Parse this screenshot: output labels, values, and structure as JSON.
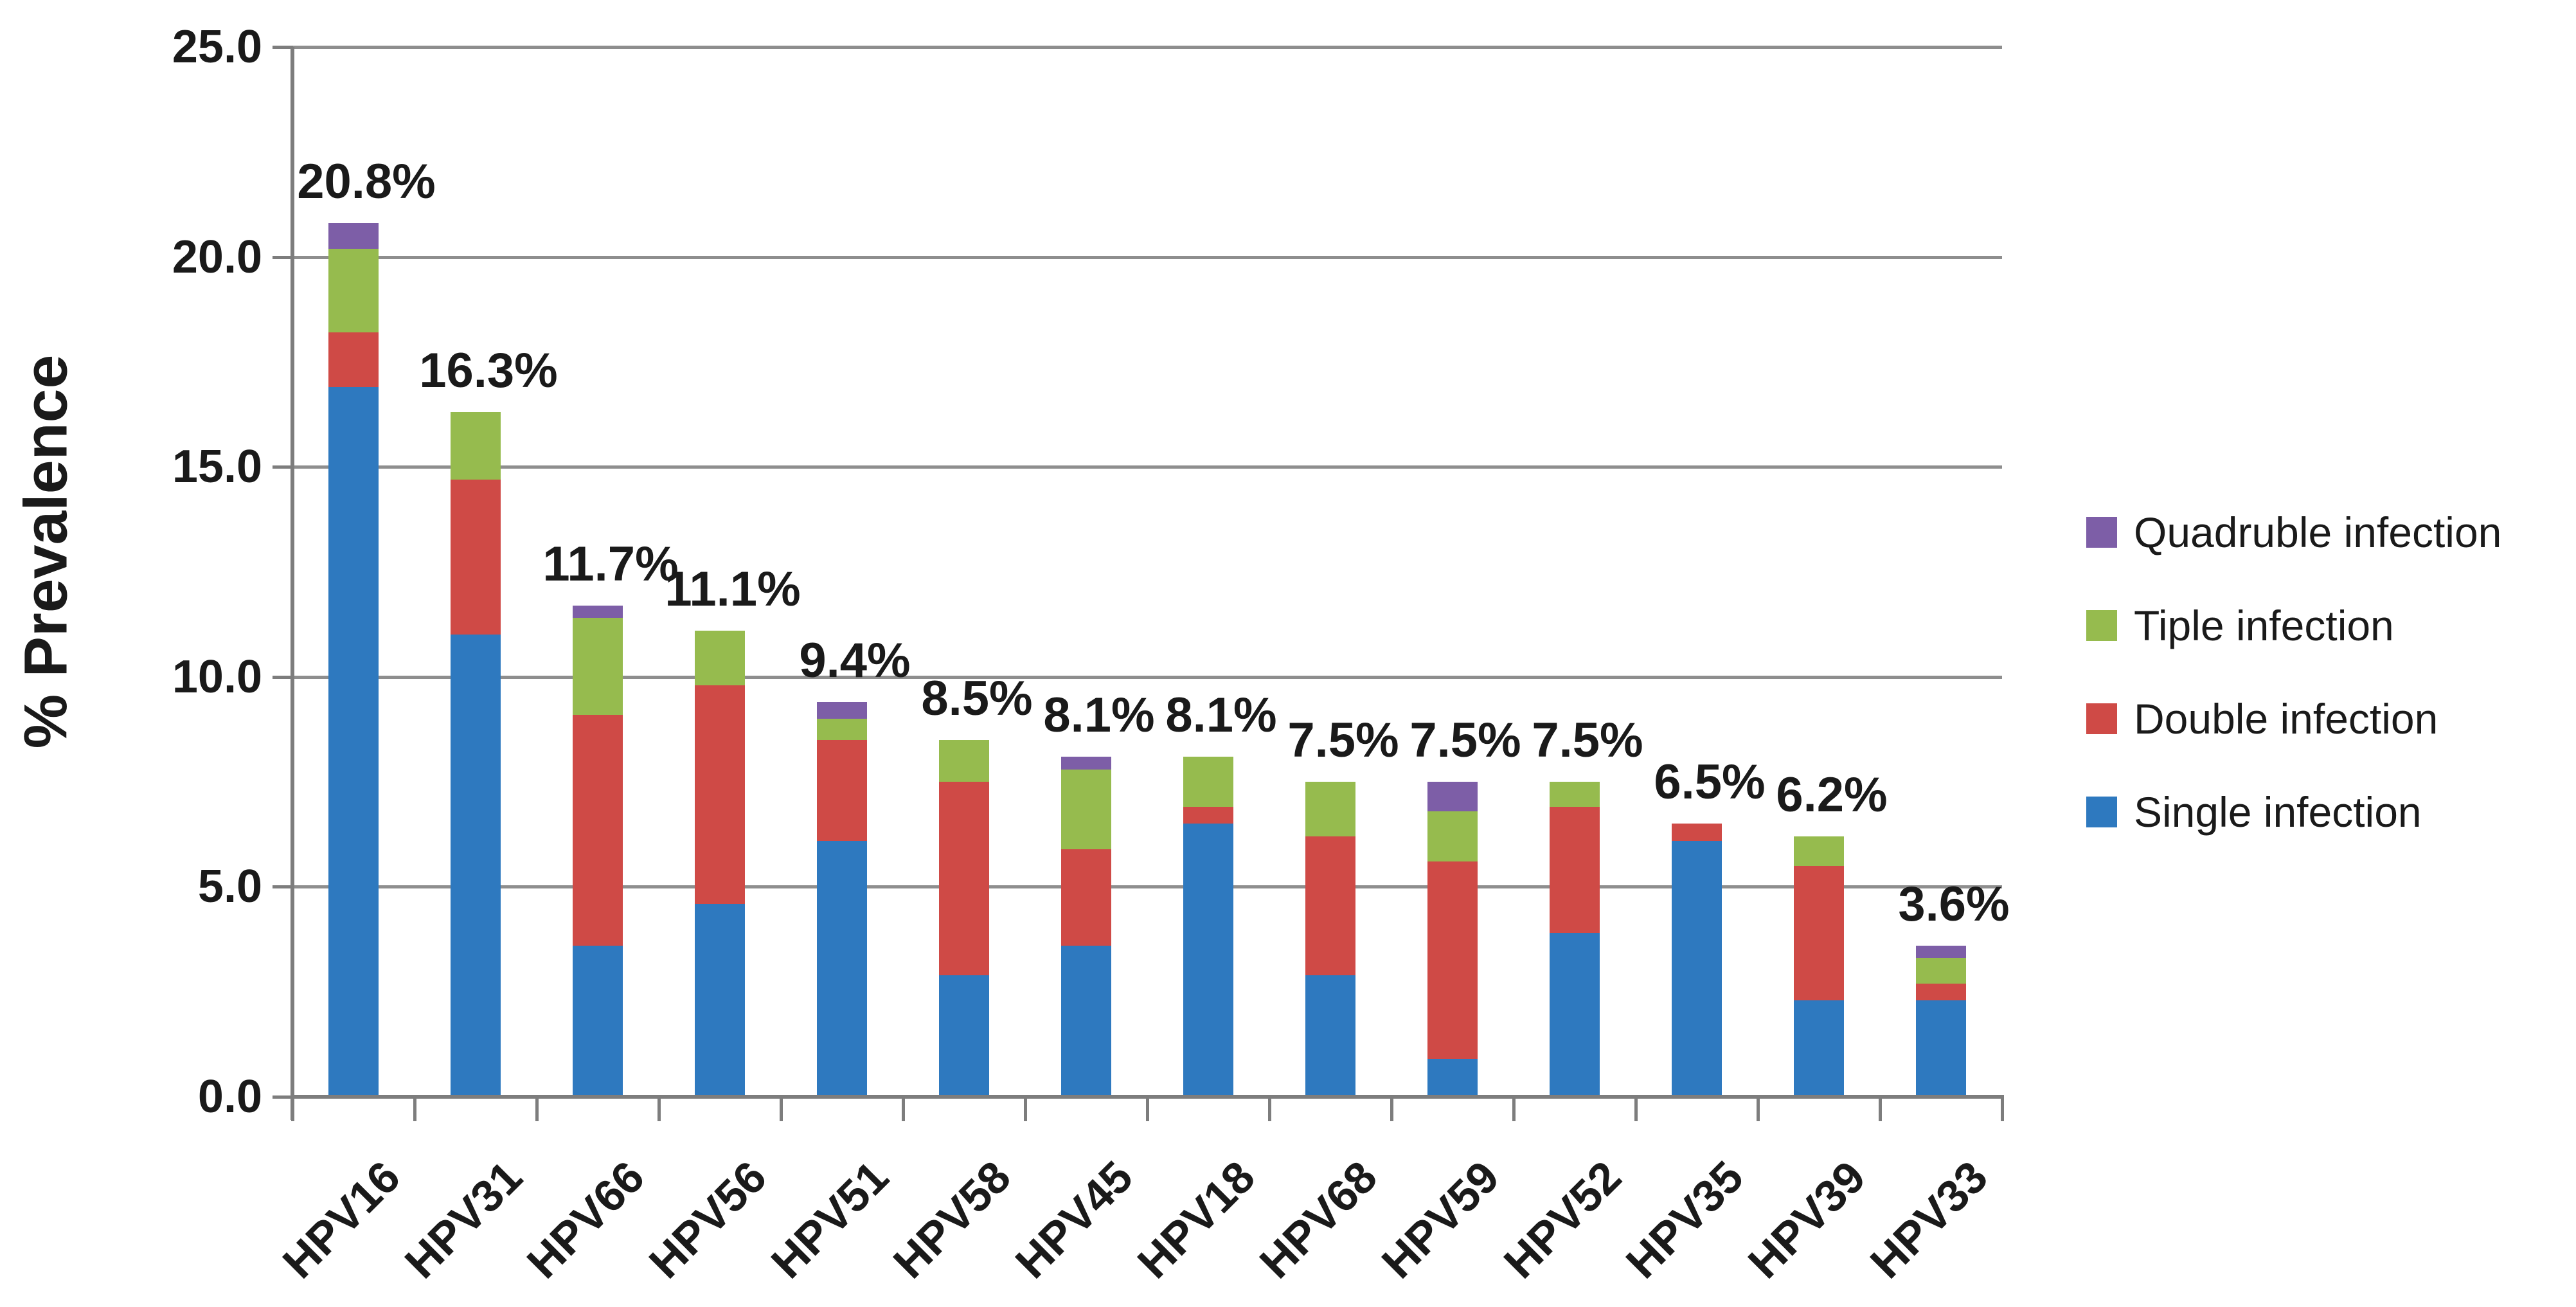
{
  "chart_data": {
    "type": "bar",
    "stacked": true,
    "title": "",
    "xlabel": "",
    "ylabel": "% Prevalence",
    "ylim": [
      0,
      25
    ],
    "ytick_step": 5,
    "ytick_labels": [
      "0.0",
      "5.0",
      "10.0",
      "15.0",
      "20.0",
      "25.0"
    ],
    "grid": true,
    "legend_position": "right",
    "categories": [
      "HPV16",
      "HPV31",
      "HPV66",
      "HPV56",
      "HPV51",
      "HPV58",
      "HPV45",
      "HPV18",
      "HPV68",
      "HPV59",
      "HPV52",
      "HPV35",
      "HPV39",
      "HPV33"
    ],
    "series": [
      {
        "name": "Single infection",
        "color": "#2E79BF",
        "values": [
          16.9,
          11.0,
          3.6,
          4.6,
          6.1,
          2.9,
          3.6,
          6.5,
          2.9,
          0.9,
          3.9,
          6.1,
          2.3,
          2.3
        ]
      },
      {
        "name": "Double infection",
        "color": "#CF4A46",
        "values": [
          1.3,
          3.7,
          5.5,
          5.2,
          2.4,
          4.6,
          2.3,
          0.4,
          3.3,
          4.7,
          3.0,
          0.4,
          3.2,
          0.4
        ]
      },
      {
        "name": "Tiple infection",
        "color": "#96BB4E",
        "values": [
          2.0,
          1.6,
          2.3,
          1.3,
          0.5,
          1.0,
          1.9,
          1.2,
          1.3,
          1.2,
          0.6,
          0.0,
          0.7,
          0.6
        ]
      },
      {
        "name": "Quadruble infection",
        "color": "#7D5EA7",
        "values": [
          0.6,
          0.0,
          0.3,
          0.0,
          0.4,
          0.0,
          0.3,
          0.0,
          0.0,
          0.7,
          0.0,
          0.0,
          0.0,
          0.3
        ]
      }
    ],
    "totals": [
      20.8,
      16.3,
      11.7,
      11.1,
      9.4,
      8.5,
      8.1,
      8.1,
      7.5,
      7.5,
      7.5,
      6.5,
      6.2,
      3.6
    ],
    "total_labels": [
      "20.8%",
      "16.3%",
      "11.7%",
      "11.1%",
      "9.4%",
      "8.5%",
      "8.1%",
      "8.1%",
      "7.5%",
      "7.5%",
      "7.5%",
      "6.5%",
      "6.2%",
      "3.6%"
    ]
  },
  "legend": {
    "items": [
      {
        "label": "Quadruble infection",
        "color": "#7D5EA7"
      },
      {
        "label": "Tiple infection",
        "color": "#96BB4E"
      },
      {
        "label": "Double infection",
        "color": "#CF4A46"
      },
      {
        "label": "Single infection",
        "color": "#2E79BF"
      }
    ]
  },
  "style_colors": {
    "gridline": "#8E8E8E",
    "axis": "#7D7D7D",
    "text": "#1A1A1A",
    "background": "#FFFFFF"
  }
}
